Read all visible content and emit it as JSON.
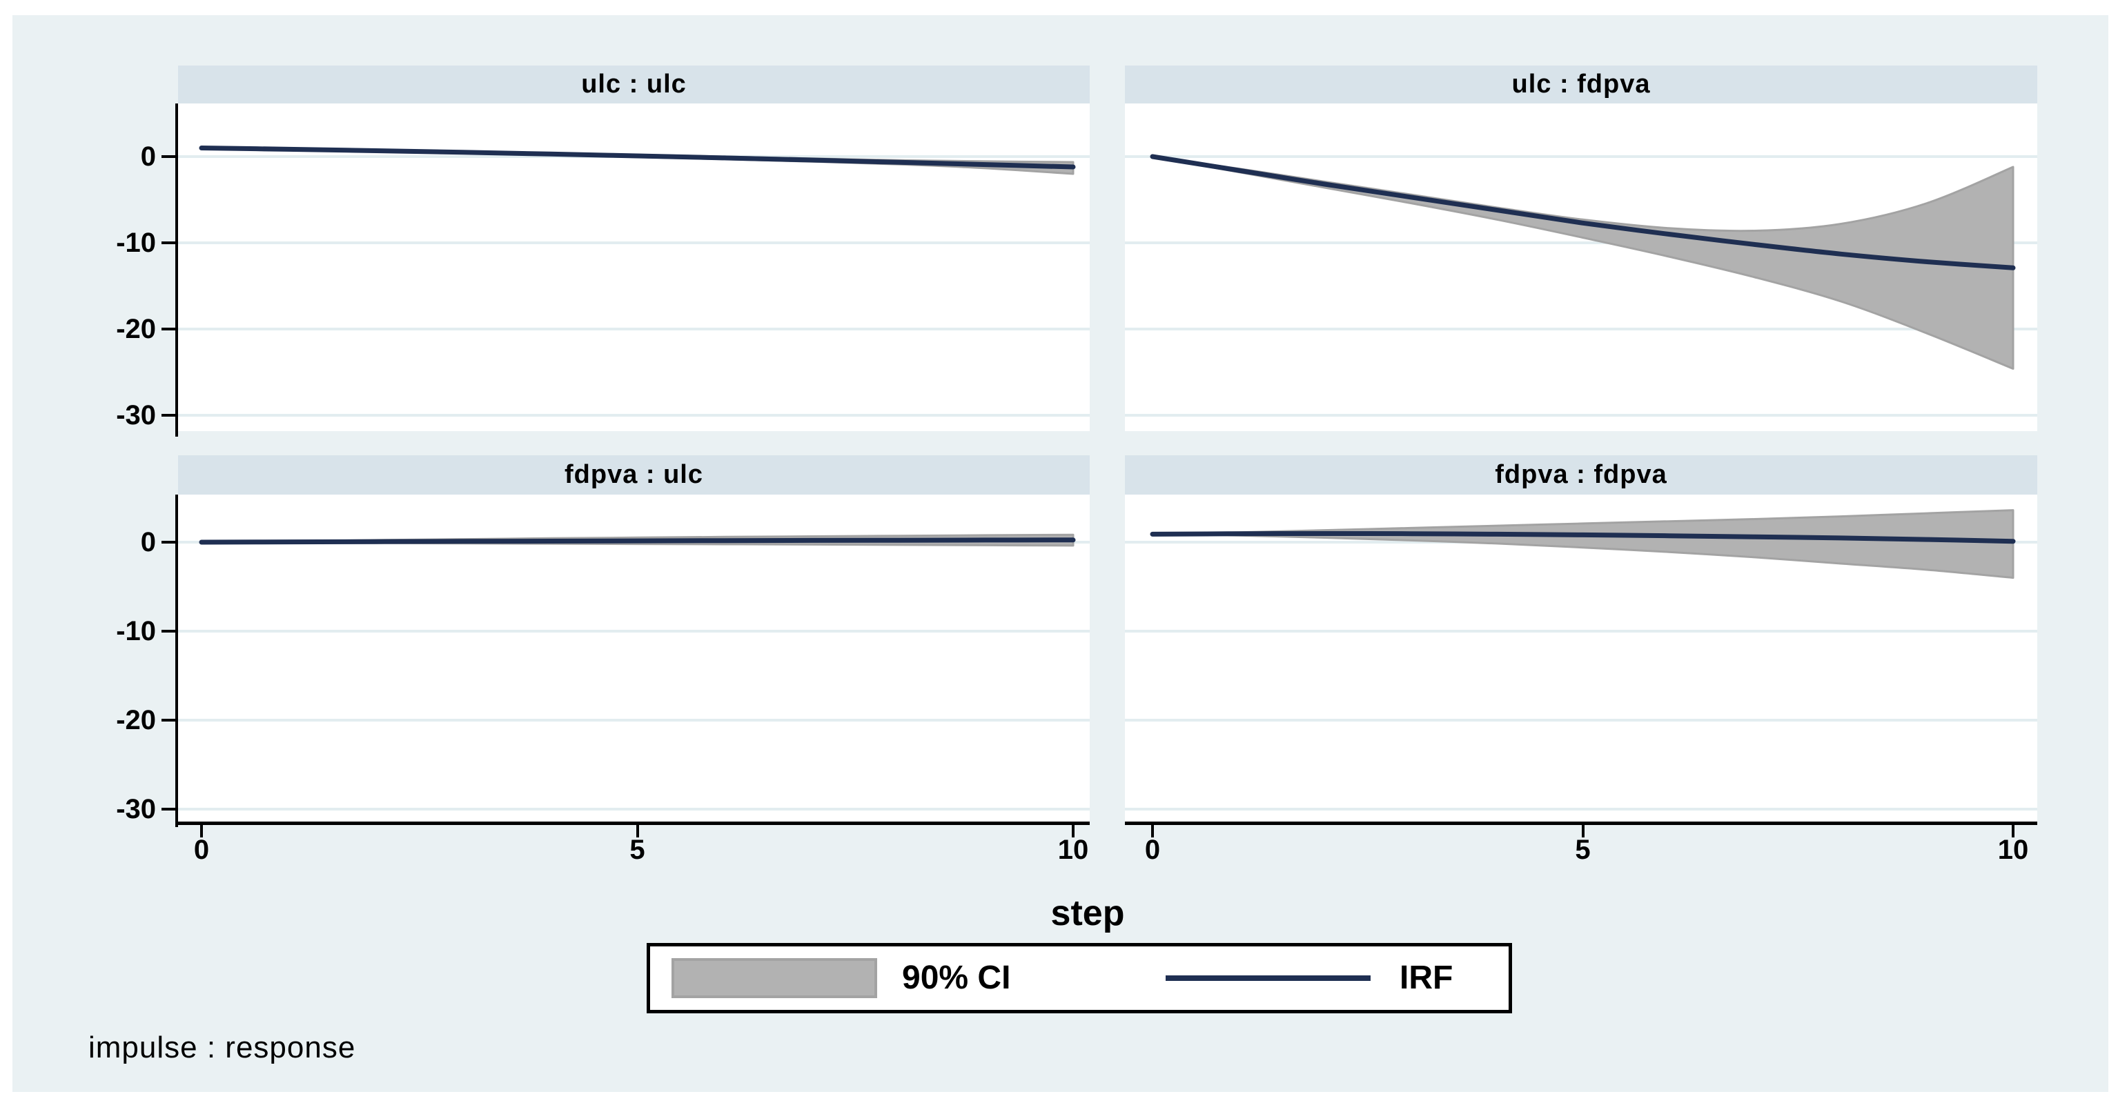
{
  "colors": {
    "page_bg": "#ffffff",
    "canvas_bg": "#eaf1f3",
    "strip_bg": "#d8e3ea",
    "plot_bg": "#ffffff",
    "grid": "#e2edf0",
    "axis": "#000000",
    "irf_line": "#1f2f52",
    "ci_fill": "#b2b2b2",
    "ci_edge": "#a3a3a3"
  },
  "xaxis": {
    "title": "step",
    "ticks": [
      {
        "label": "0",
        "value": 0
      },
      {
        "label": "5",
        "value": 5
      },
      {
        "label": "10",
        "value": 10
      }
    ]
  },
  "yaxis": {
    "ticks": [
      {
        "label": "0",
        "value": 0
      },
      {
        "label": "-10",
        "value": -10
      },
      {
        "label": "-20",
        "value": -20
      },
      {
        "label": "-30",
        "value": -30
      }
    ]
  },
  "legend": {
    "ci_label": "90% CI",
    "irf_label": "IRF",
    "position": "bottom-center"
  },
  "note": "impulse : response",
  "chart_data": [
    {
      "type": "area",
      "title": "ulc : ulc",
      "impulse": "ulc",
      "response": "ulc",
      "x": [
        0,
        1,
        2,
        3,
        4,
        5,
        6,
        7,
        8,
        9,
        10
      ],
      "irf": [
        1.0,
        0.85,
        0.68,
        0.5,
        0.3,
        0.08,
        -0.15,
        -0.4,
        -0.66,
        -0.93,
        -1.2
      ],
      "ci_upper": [
        1.0,
        0.9,
        0.76,
        0.6,
        0.42,
        0.22,
        0.0,
        -0.22,
        -0.42,
        -0.55,
        -0.64
      ],
      "ci_lower": [
        1.0,
        0.8,
        0.6,
        0.4,
        0.18,
        -0.06,
        -0.3,
        -0.58,
        -0.9,
        -1.35,
        -2.0
      ],
      "xlim": [
        0,
        10
      ],
      "ylim": [
        6,
        -31.5
      ],
      "grid": true
    },
    {
      "type": "area",
      "title": "ulc : fdpva",
      "impulse": "ulc",
      "response": "fdpva",
      "x": [
        0,
        1,
        2,
        3,
        4,
        5,
        6,
        7,
        8,
        9,
        10
      ],
      "irf": [
        0,
        -1.6,
        -3.2,
        -4.7,
        -6.2,
        -7.7,
        -9.0,
        -10.2,
        -11.3,
        -12.2,
        -12.9
      ],
      "ci_upper": [
        0,
        -1.4,
        -2.9,
        -4.4,
        -5.9,
        -7.3,
        -8.3,
        -8.6,
        -7.8,
        -5.4,
        -1.2
      ],
      "ci_lower": [
        0,
        -1.8,
        -3.6,
        -5.4,
        -7.3,
        -9.4,
        -11.6,
        -14.0,
        -16.8,
        -20.5,
        -24.6
      ],
      "xlim": [
        0,
        10
      ],
      "ylim": [
        6,
        -31.5
      ],
      "grid": true
    },
    {
      "type": "area",
      "title": "fdpva : ulc",
      "impulse": "fdpva",
      "response": "ulc",
      "x": [
        0,
        1,
        2,
        3,
        4,
        5,
        6,
        7,
        8,
        9,
        10
      ],
      "irf": [
        0,
        0.03,
        0.06,
        0.09,
        0.12,
        0.15,
        0.18,
        0.2,
        0.22,
        0.24,
        0.25
      ],
      "ci_upper": [
        0,
        0.12,
        0.24,
        0.34,
        0.44,
        0.52,
        0.6,
        0.66,
        0.72,
        0.78,
        0.84
      ],
      "ci_lower": [
        0,
        -0.05,
        -0.1,
        -0.14,
        -0.18,
        -0.2,
        -0.23,
        -0.26,
        -0.3,
        -0.34,
        -0.38
      ],
      "xlim": [
        0,
        10
      ],
      "ylim": [
        5.3,
        -31.4
      ],
      "grid": true
    },
    {
      "type": "area",
      "title": "fdpva : fdpva",
      "impulse": "fdpva",
      "response": "fdpva",
      "x": [
        0,
        1,
        2,
        3,
        4,
        5,
        6,
        7,
        8,
        9,
        10
      ],
      "irf": [
        0.9,
        0.95,
        0.97,
        0.95,
        0.9,
        0.82,
        0.72,
        0.6,
        0.47,
        0.3,
        0.1
      ],
      "ci_upper": [
        0.9,
        1.1,
        1.35,
        1.6,
        1.85,
        2.1,
        2.35,
        2.6,
        2.9,
        3.25,
        3.6
      ],
      "ci_lower": [
        0.9,
        0.75,
        0.5,
        0.2,
        -0.15,
        -0.6,
        -1.1,
        -1.7,
        -2.4,
        -3.1,
        -4.0
      ],
      "xlim": [
        0,
        10
      ],
      "ylim": [
        5.3,
        -31.4
      ],
      "grid": true
    }
  ]
}
